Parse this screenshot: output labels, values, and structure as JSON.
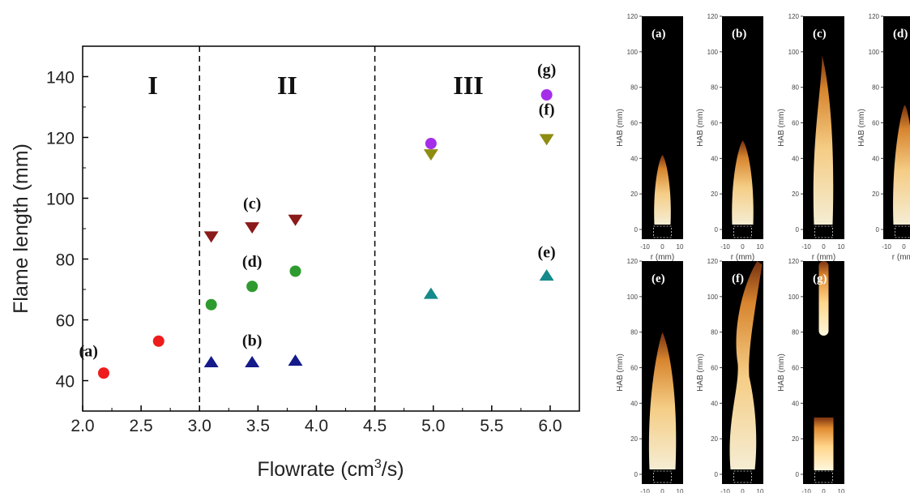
{
  "chart_data": [
    {
      "type": "scatter",
      "xlabel": "Flowrate (cm",
      "xlabel_sup": "3",
      "xlabel_tail": "/s)",
      "ylabel": "Flame length (mm)",
      "xlim": [
        2.0,
        6.25
      ],
      "ylim": [
        30,
        150
      ],
      "xticks": [
        "2.0",
        "2.5",
        "3.0",
        "3.5",
        "4.0",
        "4.5",
        "5.0",
        "5.5",
        "6.0"
      ],
      "yticks": [
        "40",
        "60",
        "80",
        "100",
        "120",
        "140"
      ],
      "regions": [
        {
          "label": "I",
          "x": 2.6
        },
        {
          "label": "II",
          "x": 3.75
        },
        {
          "label": "III",
          "x": 5.3
        }
      ],
      "dividers": [
        3.0,
        4.5
      ],
      "series": [
        {
          "marker": "circle",
          "color": "#ee1c1c",
          "points": [
            [
              2.18,
              42.5
            ],
            [
              2.65,
              53
            ]
          ]
        },
        {
          "marker": "triangle-down",
          "color": "#8b1a1a",
          "points": [
            [
              3.1,
              87.5
            ],
            [
              3.45,
              90.5
            ],
            [
              3.82,
              93
            ]
          ]
        },
        {
          "marker": "circle",
          "color": "#2e9b2e",
          "points": [
            [
              3.1,
              65
            ],
            [
              3.45,
              71
            ],
            [
              3.82,
              76
            ]
          ]
        },
        {
          "marker": "triangle-up",
          "color": "#141a8a",
          "points": [
            [
              3.1,
              46
            ],
            [
              3.45,
              46
            ],
            [
              3.82,
              46.5
            ]
          ]
        },
        {
          "marker": "circle",
          "color": "#a52ee8",
          "points": [
            [
              4.98,
              118
            ],
            [
              5.97,
              134
            ]
          ]
        },
        {
          "marker": "triangle-down",
          "color": "#8f8c12",
          "points": [
            [
              4.98,
              114.5
            ],
            [
              5.97,
              119.5
            ]
          ]
        },
        {
          "marker": "triangle-up",
          "color": "#168a8a",
          "points": [
            [
              4.98,
              68.5
            ],
            [
              5.97,
              74.5
            ]
          ]
        }
      ],
      "annotations": [
        {
          "text": "(a)",
          "x": 2.05,
          "y": 48
        },
        {
          "text": "(b)",
          "x": 3.45,
          "y": 51.5
        },
        {
          "text": "(c)",
          "x": 3.45,
          "y": 96.5
        },
        {
          "text": "(d)",
          "x": 3.45,
          "y": 77.5
        },
        {
          "text": "(e)",
          "x": 5.97,
          "y": 80.5
        },
        {
          "text": "(f)",
          "x": 5.97,
          "y": 127.5
        },
        {
          "text": "(g)",
          "x": 5.97,
          "y": 140.5
        }
      ]
    },
    {
      "type": "image-grid",
      "ylabel": "HAB (mm)",
      "xlabel": "r (mm)",
      "yticks": [
        "0",
        "20",
        "40",
        "60",
        "80",
        "100",
        "120"
      ],
      "xticks": [
        "-10",
        "0",
        "10"
      ],
      "panels": [
        {
          "label": "(a)",
          "flame": "short"
        },
        {
          "label": "(b)",
          "flame": "medium-lifted"
        },
        {
          "label": "(c)",
          "flame": "tall-flicker"
        },
        {
          "label": "(d)",
          "flame": "medium-tall"
        },
        {
          "label": "(e)",
          "flame": "wide"
        },
        {
          "label": "(f)",
          "flame": "turbulent"
        },
        {
          "label": "(g)",
          "flame": "split"
        }
      ]
    }
  ]
}
